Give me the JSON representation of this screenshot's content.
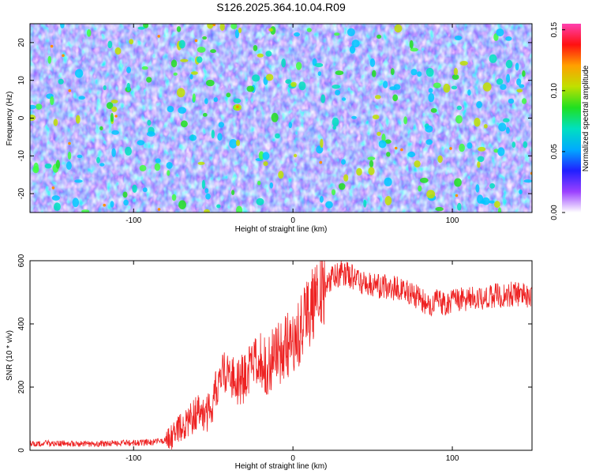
{
  "title": "S126.2025.364.10.04.R09",
  "chart_data": [
    {
      "type": "heatmap",
      "xlabel": "Height of straight line (km)",
      "ylabel": "Frequency (Hz)",
      "xlim": [
        -165,
        150
      ],
      "ylim": [
        -25,
        25
      ],
      "x_ticks": [
        -100,
        0,
        100
      ],
      "y_ticks": [
        -20,
        -10,
        0,
        10,
        20
      ],
      "colorbar": {
        "label": "Normalized spectral amplitude",
        "range": [
          0,
          0.155
        ],
        "ticks": [
          "0.00",
          "0.05",
          "0.10",
          "0.15"
        ],
        "colors": [
          "#ffffff",
          "#9a40ff",
          "#2020ff",
          "#00aaff",
          "#00e0c0",
          "#20e020",
          "#c0e000",
          "#ffa000",
          "#ff1010",
          "#ff40b0"
        ]
      }
    },
    {
      "type": "line",
      "xlabel": "Height of straight line (km)",
      "ylabel": "SNR (10 * v/v)",
      "xlim": [
        -165,
        150
      ],
      "ylim": [
        0,
        600
      ],
      "x_ticks": [
        -100,
        0,
        100
      ],
      "y_ticks": [
        0,
        200,
        400,
        600
      ],
      "color": "#ee2222",
      "series": [
        {
          "name": "SNR",
          "x": [
            -165,
            -150,
            -130,
            -110,
            -90,
            -80,
            -75,
            -70,
            -65,
            -60,
            -55,
            -50,
            -45,
            -40,
            -35,
            -30,
            -25,
            -20,
            -15,
            -10,
            -5,
            0,
            5,
            10,
            15,
            20,
            25,
            30,
            35,
            40,
            50,
            60,
            70,
            80,
            85,
            90,
            95,
            100,
            105,
            110,
            120,
            130,
            140,
            150
          ],
          "values": [
            22,
            22,
            20,
            22,
            25,
            30,
            45,
            70,
            90,
            120,
            100,
            160,
            230,
            250,
            200,
            240,
            260,
            280,
            270,
            300,
            330,
            340,
            390,
            440,
            480,
            520,
            545,
            560,
            555,
            540,
            520,
            515,
            510,
            480,
            460,
            470,
            465,
            470,
            475,
            480,
            485,
            490,
            495,
            490
          ]
        }
      ]
    }
  ]
}
